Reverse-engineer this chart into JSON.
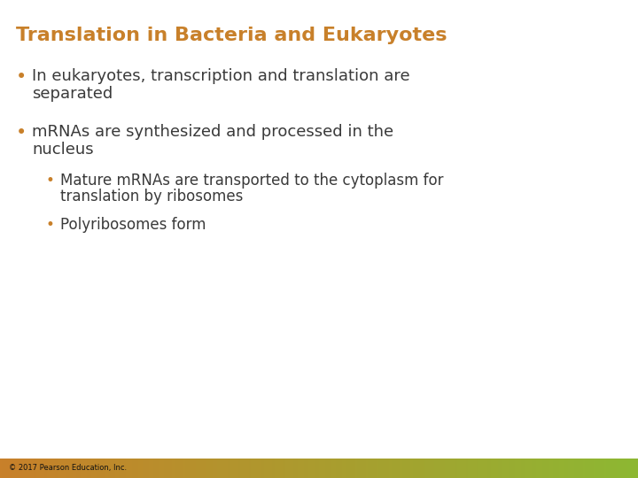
{
  "title": "Translation in Bacteria and Eukaryotes",
  "title_color": "#C8802A",
  "background_color": "#FFFFFF",
  "bullet1_line1": "In eukaryotes, transcription and translation are",
  "bullet1_line2": "separated",
  "bullet2_line1": "mRNAs are synthesized and processed in the",
  "bullet2_line2": "nucleus",
  "sub_bullet1_line1": "Mature mRNAs are transported to the cytoplasm for",
  "sub_bullet1_line2": "translation by ribosomes",
  "sub_bullet2": "Polyribosomes form",
  "footer_text": "© 2017 Pearson Education, Inc.",
  "footer_color_left": "#C8802A",
  "footer_color_right": "#8DB833",
  "text_color": "#3A3A3A",
  "bullet_color": "#C8802A",
  "title_fontsize": 16,
  "body_fontsize": 13,
  "sub_fontsize": 12
}
